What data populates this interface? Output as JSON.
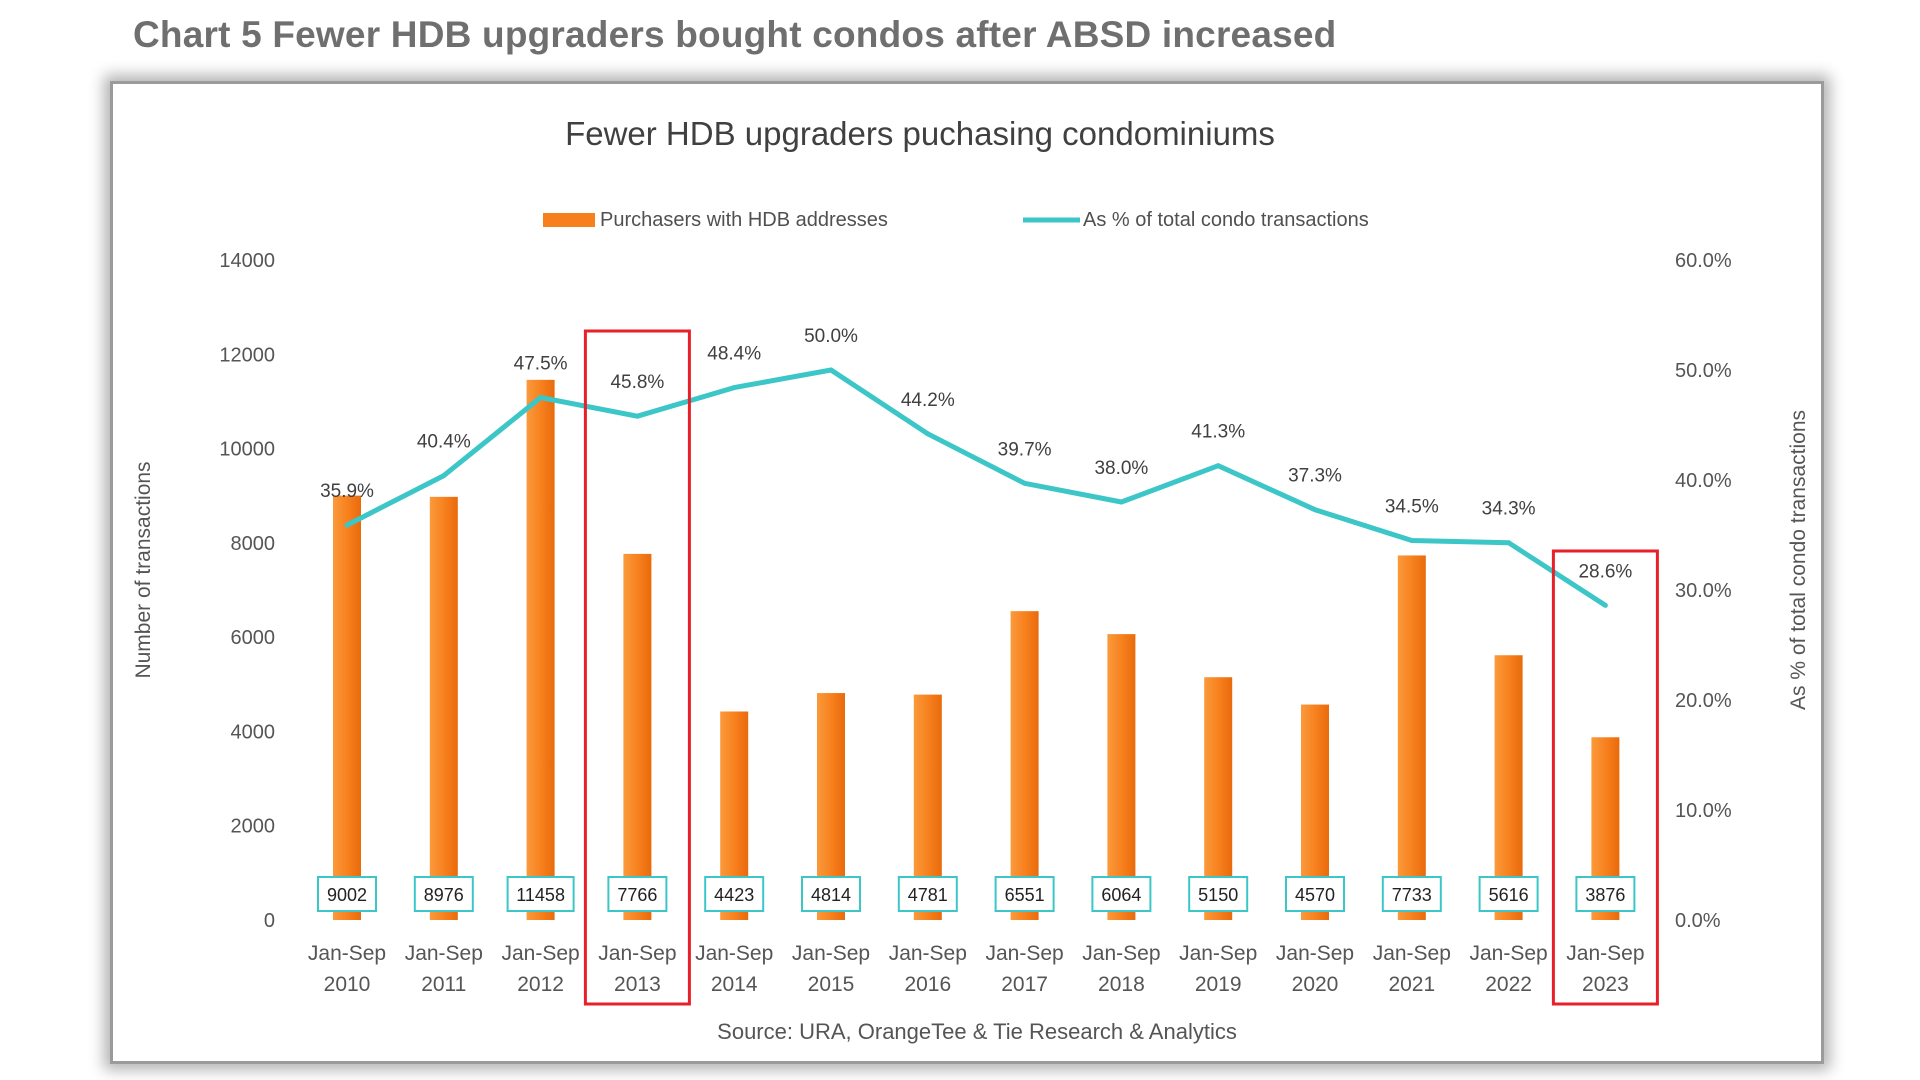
{
  "page_title": "Chart 5 Fewer HDB upgraders bought condos after ABSD increased",
  "chart_data": {
    "type": "bar",
    "title": "Fewer HDB upgraders puchasing condominiums",
    "source": "Source: URA, OrangeTee & Tie Research & Analytics",
    "categories": [
      [
        "Jan-Sep",
        "2010"
      ],
      [
        "Jan-Sep",
        "2011"
      ],
      [
        "Jan-Sep",
        "2012"
      ],
      [
        "Jan-Sep",
        "2013"
      ],
      [
        "Jan-Sep",
        "2014"
      ],
      [
        "Jan-Sep",
        "2015"
      ],
      [
        "Jan-Sep",
        "2016"
      ],
      [
        "Jan-Sep",
        "2017"
      ],
      [
        "Jan-Sep",
        "2018"
      ],
      [
        "Jan-Sep",
        "2019"
      ],
      [
        "Jan-Sep",
        "2020"
      ],
      [
        "Jan-Sep",
        "2021"
      ],
      [
        "Jan-Sep",
        "2022"
      ],
      [
        "Jan-Sep",
        "2023"
      ]
    ],
    "series": [
      {
        "name": "Purchasers with HDB addresses",
        "type": "bar",
        "axis": "left",
        "color": "#f77f1c",
        "values": [
          9002,
          8976,
          11458,
          7766,
          4423,
          4814,
          4781,
          6551,
          6064,
          5150,
          4570,
          7733,
          5616,
          3876
        ],
        "labels": [
          "9002",
          "8976",
          "11458",
          "7766",
          "4423",
          "4814",
          "4781",
          "6551",
          "6064",
          "5150",
          "4570",
          "7733",
          "5616",
          "3876"
        ]
      },
      {
        "name": "As % of total condo transactions",
        "type": "line",
        "axis": "right",
        "color": "#3cc6c8",
        "values": [
          35.9,
          40.4,
          47.5,
          45.8,
          48.4,
          50.0,
          44.2,
          39.7,
          38.0,
          41.3,
          37.3,
          34.5,
          34.3,
          28.6
        ],
        "labels": [
          "35.9%",
          "40.4%",
          "47.5%",
          "45.8%",
          "48.4%",
          "50.0%",
          "44.2%",
          "39.7%",
          "38.0%",
          "41.3%",
          "37.3%",
          "34.5%",
          "34.3%",
          "28.6%"
        ]
      }
    ],
    "ylabel": "Number of transactions",
    "y2label": "As % of total condo transactions",
    "ylim": [
      0,
      14000
    ],
    "yticks": [
      "0",
      "2000",
      "4000",
      "6000",
      "8000",
      "10000",
      "12000",
      "14000"
    ],
    "y2lim": [
      0,
      60
    ],
    "y2ticks": [
      "0.0%",
      "10.0%",
      "20.0%",
      "30.0%",
      "40.0%",
      "50.0%",
      "60.0%"
    ],
    "highlighted_categories": [
      3,
      13
    ],
    "highlight_color": "#e8202a",
    "grid": false,
    "legend_position": "top-center"
  }
}
